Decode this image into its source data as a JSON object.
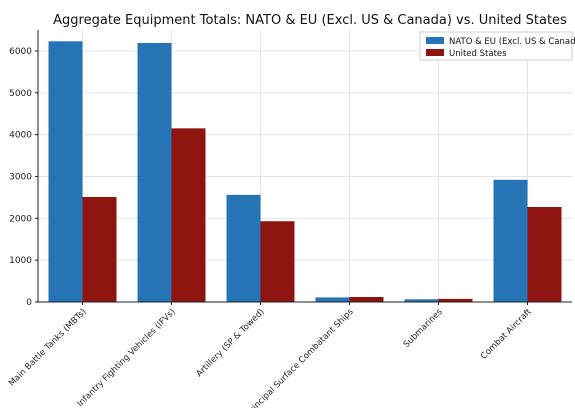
{
  "chart_data": {
    "type": "bar",
    "title": "Aggregate Equipment Totals: NATO & EU (Excl. US & Canada) vs. United States",
    "xlabel": "",
    "ylabel": "",
    "categories": [
      "Main Battle Tanks (MBTs)",
      "Infantry Fighting Vehicles (IFVs)",
      "Artillery (SP & Towed)",
      "Principal Surface Combatant Ships",
      "Submarines",
      "Combat Aircraft"
    ],
    "series": [
      {
        "name": "NATO & EU (Excl. US & Canada",
        "color": "#2674b6",
        "values": [
          6230,
          6190,
          2560,
          110,
          65,
          2920
        ]
      },
      {
        "name": "United States",
        "color": "#8e1410",
        "values": [
          2510,
          4150,
          1930,
          120,
          75,
          2270
        ]
      }
    ],
    "ylim": [
      0,
      6500
    ],
    "yticks": [
      0,
      1000,
      2000,
      3000,
      4000,
      5000,
      6000
    ],
    "grid": true,
    "legend_position": "top-right"
  }
}
